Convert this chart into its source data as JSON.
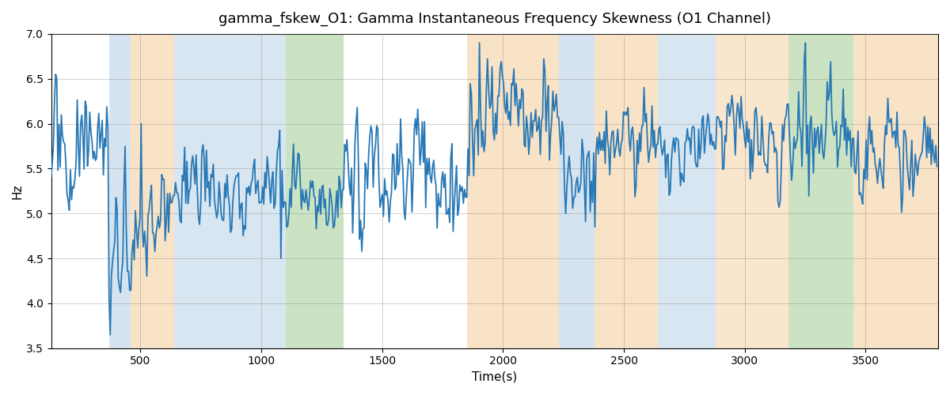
{
  "title": "gamma_fskew_O1: Gamma Instantaneous Frequency Skewness (O1 Channel)",
  "xlabel": "Time(s)",
  "ylabel": "Hz",
  "ylim": [
    3.5,
    7.0
  ],
  "xlim": [
    130,
    3800
  ],
  "line_color": "#2878b5",
  "line_width": 1.3,
  "bg_color": "#ffffff",
  "grid_color": "#888888",
  "colored_bands": [
    {
      "xmin": 370,
      "xmax": 460,
      "color": "#aac8e0",
      "alpha": 0.5
    },
    {
      "xmin": 460,
      "xmax": 640,
      "color": "#f5c990",
      "alpha": 0.5
    },
    {
      "xmin": 640,
      "xmax": 1100,
      "color": "#aac8e0",
      "alpha": 0.45
    },
    {
      "xmin": 1100,
      "xmax": 1340,
      "color": "#98c888",
      "alpha": 0.5
    },
    {
      "xmin": 1850,
      "xmax": 2230,
      "color": "#f5c990",
      "alpha": 0.5
    },
    {
      "xmin": 2230,
      "xmax": 2380,
      "color": "#aac8e0",
      "alpha": 0.5
    },
    {
      "xmin": 2380,
      "xmax": 2640,
      "color": "#f5c990",
      "alpha": 0.5
    },
    {
      "xmin": 2640,
      "xmax": 2880,
      "color": "#aac8e0",
      "alpha": 0.45
    },
    {
      "xmin": 2880,
      "xmax": 3180,
      "color": "#f5c990",
      "alpha": 0.45
    },
    {
      "xmin": 3180,
      "xmax": 3450,
      "color": "#98c888",
      "alpha": 0.5
    },
    {
      "xmin": 3450,
      "xmax": 3800,
      "color": "#f5c990",
      "alpha": 0.5
    }
  ],
  "segments": [
    {
      "t0": 130,
      "t1": 370,
      "mean": 5.65,
      "std": 0.28,
      "ar": 0.55
    },
    {
      "t0": 370,
      "t1": 460,
      "mean": 4.6,
      "std": 0.45,
      "ar": 0.4
    },
    {
      "t0": 460,
      "t1": 640,
      "mean": 5.1,
      "std": 0.28,
      "ar": 0.55
    },
    {
      "t0": 640,
      "t1": 1100,
      "mean": 5.25,
      "std": 0.22,
      "ar": 0.55
    },
    {
      "t0": 1100,
      "t1": 1340,
      "mean": 5.15,
      "std": 0.24,
      "ar": 0.55
    },
    {
      "t0": 1340,
      "t1": 1850,
      "mean": 5.45,
      "std": 0.32,
      "ar": 0.5
    },
    {
      "t0": 1850,
      "t1": 2230,
      "mean": 6.05,
      "std": 0.32,
      "ar": 0.5
    },
    {
      "t0": 2230,
      "t1": 2380,
      "mean": 5.5,
      "std": 0.28,
      "ar": 0.5
    },
    {
      "t0": 2380,
      "t1": 2640,
      "mean": 5.85,
      "std": 0.26,
      "ar": 0.5
    },
    {
      "t0": 2640,
      "t1": 2880,
      "mean": 5.8,
      "std": 0.24,
      "ar": 0.5
    },
    {
      "t0": 2880,
      "t1": 3180,
      "mean": 5.85,
      "std": 0.26,
      "ar": 0.5
    },
    {
      "t0": 3180,
      "t1": 3450,
      "mean": 5.85,
      "std": 0.3,
      "ar": 0.5
    },
    {
      "t0": 3450,
      "t1": 3800,
      "mean": 5.5,
      "std": 0.26,
      "ar": 0.5
    }
  ]
}
